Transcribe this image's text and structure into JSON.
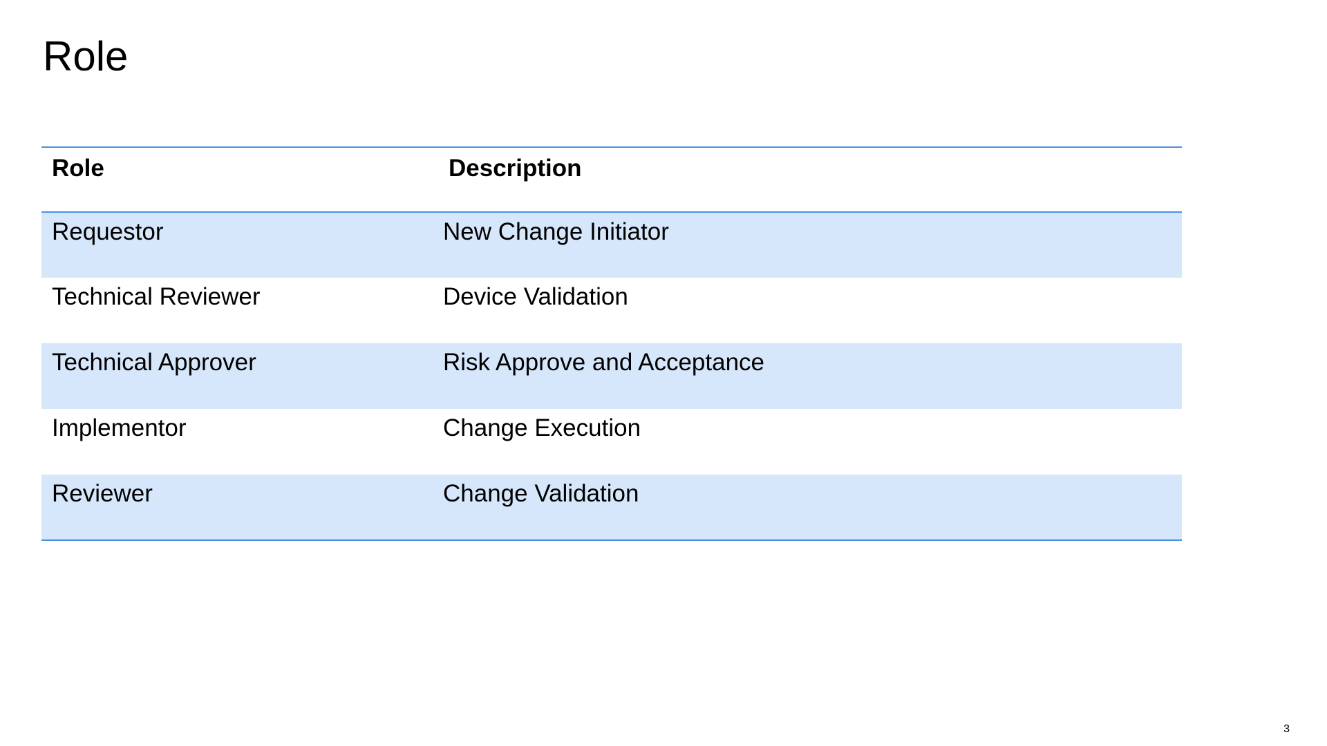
{
  "slide": {
    "title": "Role",
    "page_number": "3"
  },
  "table": {
    "headers": [
      "Role",
      "Description"
    ],
    "rows": [
      {
        "role": "Requestor",
        "description": "New Change Initiator"
      },
      {
        "role": "Technical Reviewer",
        "description": "Device Validation"
      },
      {
        "role": "Technical Approver",
        "description": "Risk Approve and Acceptance"
      },
      {
        "role": "Implementor",
        "description": "Change Execution"
      },
      {
        "role": "Reviewer",
        "description": "Change Validation"
      }
    ]
  },
  "colors": {
    "rule": "#4a90e2",
    "row_shade": "#d6e6fb",
    "text": "#000000",
    "background": "#ffffff"
  }
}
